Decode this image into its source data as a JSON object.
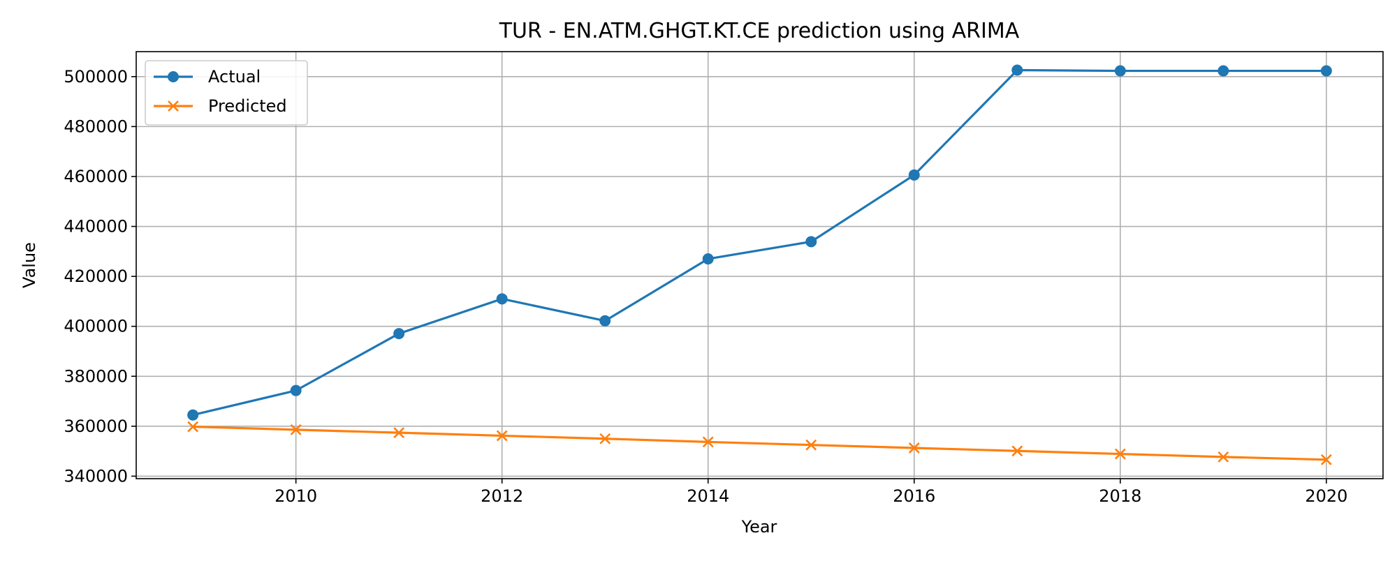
{
  "chart_data": {
    "type": "line",
    "title": "TUR - EN.ATM.GHGT.KT.CE prediction using ARIMA",
    "xlabel": "Year",
    "ylabel": "Value",
    "x": [
      2009,
      2010,
      2011,
      2012,
      2013,
      2014,
      2015,
      2016,
      2017,
      2018,
      2019,
      2020
    ],
    "xlim": [
      2008.45,
      2020.55
    ],
    "ylim": [
      339000,
      510000
    ],
    "xticks": [
      2010,
      2012,
      2014,
      2016,
      2018,
      2020
    ],
    "yticks": [
      340000,
      360000,
      380000,
      400000,
      420000,
      440000,
      460000,
      480000,
      500000
    ],
    "grid": true,
    "legend_position": "top-left",
    "series": [
      {
        "name": "Actual",
        "color": "#1f77b4",
        "marker": "circle",
        "values": [
          364500,
          374300,
          397100,
          411000,
          402200,
          427000,
          433900,
          460600,
          502600,
          502300,
          502300,
          502300
        ]
      },
      {
        "name": "Predicted",
        "color": "#ff7f0e",
        "marker": "x",
        "values": [
          359800,
          358600,
          357400,
          356200,
          355000,
          353700,
          352500,
          351300,
          350100,
          348900,
          347700,
          346600
        ]
      }
    ]
  }
}
